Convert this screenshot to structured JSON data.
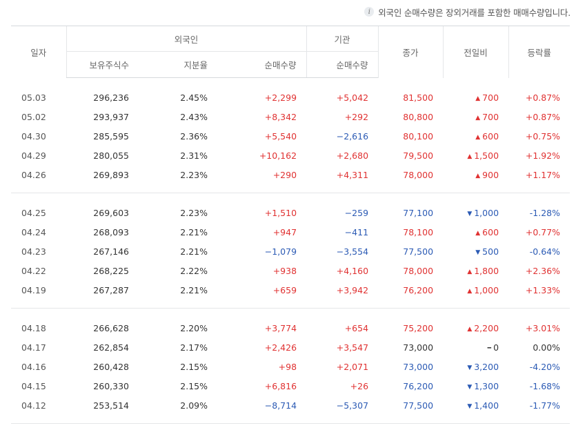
{
  "notice": {
    "icon": "info-icon",
    "text": "외국인 순매수량은 장외거래를 포함한 매매수량입니다."
  },
  "header": {
    "date": "일자",
    "foreign_group": "외국인",
    "institution_group": "기관",
    "holdings": "보유주식수",
    "ratio": "지분율",
    "foreign_net": "순매수량",
    "institution_net": "순매수량",
    "close": "종가",
    "change": "전일비",
    "rate": "등락률"
  },
  "colors": {
    "up": "#e03131",
    "down": "#2b5ab4",
    "flat": "#333333"
  },
  "groups": [
    {
      "rows": [
        {
          "date": "05.03",
          "holdings": "296,236",
          "ratio": "2.45%",
          "foreign_net": "+2,299",
          "foreign_dir": "up",
          "inst_net": "+5,042",
          "inst_dir": "up",
          "close": "81,500",
          "close_dir": "up",
          "change": "700",
          "change_dir": "up",
          "rate": "+0.87%",
          "rate_dir": "up"
        },
        {
          "date": "05.02",
          "holdings": "293,937",
          "ratio": "2.43%",
          "foreign_net": "+8,342",
          "foreign_dir": "up",
          "inst_net": "+292",
          "inst_dir": "up",
          "close": "80,800",
          "close_dir": "up",
          "change": "700",
          "change_dir": "up",
          "rate": "+0.87%",
          "rate_dir": "up"
        },
        {
          "date": "04.30",
          "holdings": "285,595",
          "ratio": "2.36%",
          "foreign_net": "+5,540",
          "foreign_dir": "up",
          "inst_net": "−2,616",
          "inst_dir": "down",
          "close": "80,100",
          "close_dir": "up",
          "change": "600",
          "change_dir": "up",
          "rate": "+0.75%",
          "rate_dir": "up"
        },
        {
          "date": "04.29",
          "holdings": "280,055",
          "ratio": "2.31%",
          "foreign_net": "+10,162",
          "foreign_dir": "up",
          "inst_net": "+2,680",
          "inst_dir": "up",
          "close": "79,500",
          "close_dir": "up",
          "change": "1,500",
          "change_dir": "up",
          "rate": "+1.92%",
          "rate_dir": "up"
        },
        {
          "date": "04.26",
          "holdings": "269,893",
          "ratio": "2.23%",
          "foreign_net": "+290",
          "foreign_dir": "up",
          "inst_net": "+4,311",
          "inst_dir": "up",
          "close": "78,000",
          "close_dir": "up",
          "change": "900",
          "change_dir": "up",
          "rate": "+1.17%",
          "rate_dir": "up"
        }
      ]
    },
    {
      "rows": [
        {
          "date": "04.25",
          "holdings": "269,603",
          "ratio": "2.23%",
          "foreign_net": "+1,510",
          "foreign_dir": "up",
          "inst_net": "−259",
          "inst_dir": "down",
          "close": "77,100",
          "close_dir": "down",
          "change": "1,000",
          "change_dir": "down",
          "rate": "-1.28%",
          "rate_dir": "down"
        },
        {
          "date": "04.24",
          "holdings": "268,093",
          "ratio": "2.21%",
          "foreign_net": "+947",
          "foreign_dir": "up",
          "inst_net": "−411",
          "inst_dir": "down",
          "close": "78,100",
          "close_dir": "up",
          "change": "600",
          "change_dir": "up",
          "rate": "+0.77%",
          "rate_dir": "up"
        },
        {
          "date": "04.23",
          "holdings": "267,146",
          "ratio": "2.21%",
          "foreign_net": "−1,079",
          "foreign_dir": "down",
          "inst_net": "−3,554",
          "inst_dir": "down",
          "close": "77,500",
          "close_dir": "down",
          "change": "500",
          "change_dir": "down",
          "rate": "-0.64%",
          "rate_dir": "down"
        },
        {
          "date": "04.22",
          "holdings": "268,225",
          "ratio": "2.22%",
          "foreign_net": "+938",
          "foreign_dir": "up",
          "inst_net": "+4,160",
          "inst_dir": "up",
          "close": "78,000",
          "close_dir": "up",
          "change": "1,800",
          "change_dir": "up",
          "rate": "+2.36%",
          "rate_dir": "up"
        },
        {
          "date": "04.19",
          "holdings": "267,287",
          "ratio": "2.21%",
          "foreign_net": "+659",
          "foreign_dir": "up",
          "inst_net": "+3,942",
          "inst_dir": "up",
          "close": "76,200",
          "close_dir": "up",
          "change": "1,000",
          "change_dir": "up",
          "rate": "+1.33%",
          "rate_dir": "up"
        }
      ]
    },
    {
      "rows": [
        {
          "date": "04.18",
          "holdings": "266,628",
          "ratio": "2.20%",
          "foreign_net": "+3,774",
          "foreign_dir": "up",
          "inst_net": "+654",
          "inst_dir": "up",
          "close": "75,200",
          "close_dir": "up",
          "change": "2,200",
          "change_dir": "up",
          "rate": "+3.01%",
          "rate_dir": "up"
        },
        {
          "date": "04.17",
          "holdings": "262,854",
          "ratio": "2.17%",
          "foreign_net": "+2,426",
          "foreign_dir": "up",
          "inst_net": "+3,547",
          "inst_dir": "up",
          "close": "73,000",
          "close_dir": "flat",
          "change": "0",
          "change_dir": "flat",
          "rate": "0.00%",
          "rate_dir": "flat"
        },
        {
          "date": "04.16",
          "holdings": "260,428",
          "ratio": "2.15%",
          "foreign_net": "+98",
          "foreign_dir": "up",
          "inst_net": "+2,071",
          "inst_dir": "up",
          "close": "73,000",
          "close_dir": "down",
          "change": "3,200",
          "change_dir": "down",
          "rate": "-4.20%",
          "rate_dir": "down"
        },
        {
          "date": "04.15",
          "holdings": "260,330",
          "ratio": "2.15%",
          "foreign_net": "+6,816",
          "foreign_dir": "up",
          "inst_net": "+26",
          "inst_dir": "up",
          "close": "76,200",
          "close_dir": "down",
          "change": "1,300",
          "change_dir": "down",
          "rate": "-1.68%",
          "rate_dir": "down"
        },
        {
          "date": "04.12",
          "holdings": "253,514",
          "ratio": "2.09%",
          "foreign_net": "−8,714",
          "foreign_dir": "down",
          "inst_net": "−5,307",
          "inst_dir": "down",
          "close": "77,500",
          "close_dir": "down",
          "change": "1,400",
          "change_dir": "down",
          "rate": "-1.77%",
          "rate_dir": "down"
        }
      ]
    }
  ]
}
